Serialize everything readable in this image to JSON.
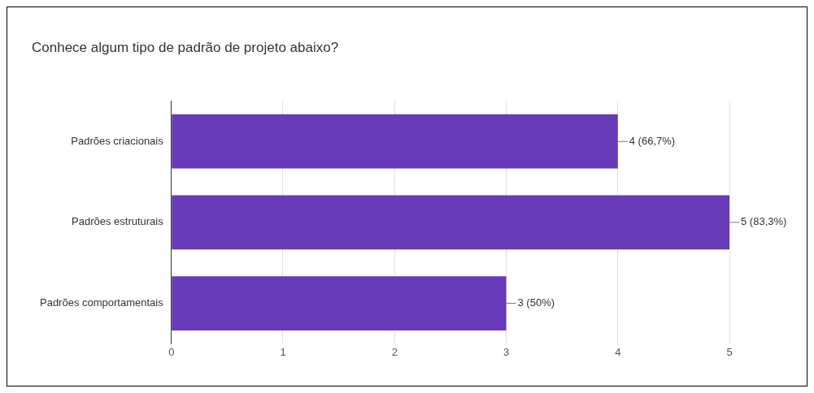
{
  "chart_data": {
    "type": "bar",
    "orientation": "horizontal",
    "title": "Conhece algum tipo de padrão de projeto abaixo?",
    "categories": [
      "Padrões criacionais",
      "Padrões estruturais",
      "Padrões comportamentais"
    ],
    "values": [
      4,
      5,
      3
    ],
    "value_labels": [
      "4 (66,7%)",
      "5 (83,3%)",
      "3 (50%)"
    ],
    "color": "#673ab7",
    "xlim": [
      0,
      5
    ],
    "xticks": [
      0,
      1,
      2,
      3,
      4,
      5
    ],
    "grid": "x",
    "legend": false
  }
}
